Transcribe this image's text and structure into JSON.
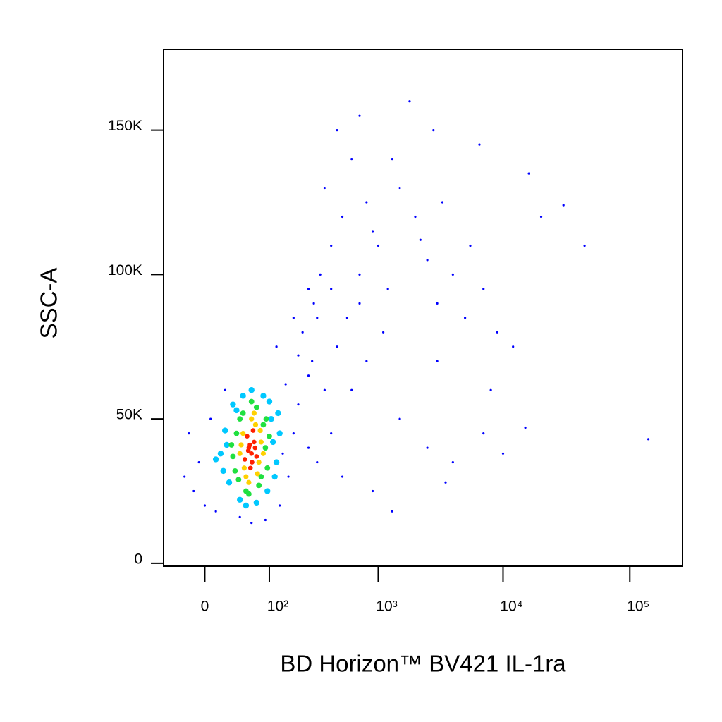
{
  "chart_data": {
    "type": "scatter",
    "xlabel": "BD Horizon™ BV421 IL-1ra",
    "ylabel": "SSC-A",
    "xscale": "logicle",
    "xlim": [
      -50,
      260000
    ],
    "ylim": [
      -1000,
      178000
    ],
    "xticks": [
      0,
      {
        "value": 100,
        "label": "10²"
      },
      {
        "value": 1000,
        "label": "10³"
      },
      {
        "value": 10000,
        "label": "10⁴"
      },
      {
        "value": 100000,
        "label": "10⁵"
      }
    ],
    "yticks": [
      0,
      {
        "value": 50000,
        "label": "50K"
      },
      {
        "value": 100000,
        "label": "100K"
      },
      {
        "value": 150000,
        "label": "150K"
      }
    ],
    "series": [
      {
        "color": "#0000ff",
        "x": [
          -20,
          -10,
          -15,
          0,
          5,
          -5,
          10,
          20,
          140,
          180,
          160,
          200,
          150,
          130,
          90,
          60,
          40,
          250,
          300,
          400,
          350,
          270,
          220,
          200,
          280,
          250,
          320,
          400,
          500,
          350,
          600,
          450,
          800,
          1000,
          1200,
          1500,
          2000,
          2500,
          3000,
          4000,
          5000,
          7000,
          9000,
          12000,
          16000,
          20000,
          30000,
          44000,
          1800,
          700,
          2800,
          6500,
          1100,
          800,
          600,
          1500,
          2500,
          4000,
          7000,
          10000,
          15000,
          140000,
          500,
          900,
          1300,
          3500,
          550,
          450,
          700,
          900,
          1300,
          2200,
          3300,
          5500,
          8000,
          3000,
          700,
          400,
          300,
          250,
          180,
          120
        ],
        "y": [
          30000,
          25000,
          45000,
          20000,
          50000,
          35000,
          18000,
          60000,
          38000,
          45000,
          30000,
          55000,
          62000,
          20000,
          15000,
          14000,
          16000,
          40000,
          35000,
          45000,
          60000,
          70000,
          80000,
          72000,
          90000,
          95000,
          100000,
          110000,
          120000,
          130000,
          140000,
          150000,
          125000,
          110000,
          95000,
          130000,
          120000,
          105000,
          90000,
          100000,
          85000,
          95000,
          80000,
          75000,
          135000,
          120000,
          124000,
          110000,
          160000,
          155000,
          150000,
          145000,
          80000,
          70000,
          60000,
          50000,
          40000,
          35000,
          45000,
          38000,
          47000,
          43000,
          30000,
          25000,
          18000,
          28000,
          85000,
          75000,
          100000,
          115000,
          140000,
          112000,
          125000,
          110000,
          60000,
          70000,
          90000,
          95000,
          85000,
          65000,
          85000,
          75000
        ]
      },
      {
        "color": "#00c8ff",
        "x": [
          15,
          20,
          110,
          120,
          25,
          105,
          30,
          95,
          18,
          130,
          40,
          85,
          22,
          115,
          60,
          35,
          100,
          50,
          10,
          125,
          70,
          45
        ],
        "y": [
          38000,
          46000,
          42000,
          35000,
          28000,
          50000,
          55000,
          25000,
          32000,
          45000,
          22000,
          58000,
          41000,
          30000,
          60000,
          53000,
          56000,
          20000,
          36000,
          52000,
          21000,
          58000
        ]
      },
      {
        "color": "#20e040",
        "x": [
          30,
          35,
          90,
          95,
          38,
          85,
          45,
          75,
          28,
          100,
          50,
          70,
          33,
          92,
          60,
          40,
          80,
          55
        ],
        "y": [
          37000,
          45000,
          40000,
          33000,
          29000,
          48000,
          52000,
          27000,
          41000,
          44000,
          25000,
          54000,
          32000,
          50000,
          56000,
          50000,
          30000,
          24000
        ]
      },
      {
        "color": "#ffd000",
        "x": [
          40,
          45,
          75,
          80,
          50,
          68,
          42,
          85,
          60,
          72,
          47,
          78,
          55,
          65
        ],
        "y": [
          38000,
          45000,
          35000,
          42000,
          30000,
          48000,
          41000,
          38000,
          50000,
          31000,
          33000,
          46000,
          28000,
          52000
        ]
      },
      {
        "color": "#ff2000",
        "x": [
          48,
          55,
          60,
          65,
          70,
          52,
          58,
          63,
          67,
          57,
          61,
          54
        ],
        "y": [
          36000,
          40000,
          38000,
          42000,
          37000,
          44000,
          33000,
          46000,
          40000,
          41000,
          35000,
          39000
        ]
      }
    ]
  }
}
